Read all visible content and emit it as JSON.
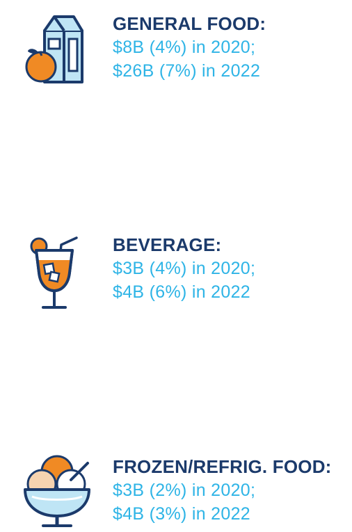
{
  "colors": {
    "title": "#1b3a6b",
    "value": "#2eb4e6",
    "icon_outline": "#1b3a6b",
    "icon_fill": "#bfe5f5",
    "accent_orange": "#f08a24"
  },
  "categories": [
    {
      "icon": "milk-carton-orange-icon",
      "title": "GENERAL FOOD:",
      "line1": "$8B (4%) in 2020;",
      "line2": "$26B (7%) in 2022"
    },
    {
      "icon": "cocktail-glass-icon",
      "title": "BEVERAGE:",
      "line1": "$3B (4%) in 2020;",
      "line2": "$4B (6%) in 2022"
    },
    {
      "icon": "ice-cream-bowl-icon",
      "title": "FROZEN/REFRIG. FOOD:",
      "line1": "$3B (2%) in 2020;",
      "line2": "$4B (3%) in 2022"
    }
  ]
}
